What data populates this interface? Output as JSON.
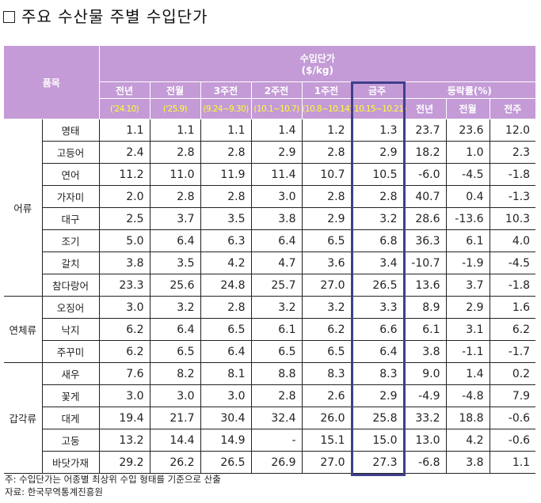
{
  "title": "주요 수산물 주별 수입단가",
  "title_marker": "□",
  "header": {
    "item_label": "품목",
    "price_group": "수입단가",
    "price_unit": "($/kg)",
    "columns": [
      {
        "label": "전년",
        "period": "('24.10)"
      },
      {
        "label": "전월",
        "period": "('25.9)"
      },
      {
        "label": "3주전",
        "period": "(9.24~9.30)"
      },
      {
        "label": "2주전",
        "period": "(10.1~10.7)"
      },
      {
        "label": "1주전",
        "period": "(10.8~10.14)"
      },
      {
        "label": "금주",
        "period": "(10.15~10.21)"
      }
    ],
    "change_group": "등락률(%)",
    "change_columns": [
      "전년",
      "전월",
      "전주"
    ]
  },
  "groups": [
    {
      "category": "어류",
      "rows": [
        {
          "item": "명태",
          "values": [
            "1.1",
            "1.1",
            "1.1",
            "1.4",
            "1.2",
            "1.3"
          ],
          "changes": [
            "23.7",
            "23.6",
            "12.0"
          ]
        },
        {
          "item": "고등어",
          "values": [
            "2.4",
            "2.8",
            "2.8",
            "2.9",
            "2.8",
            "2.9"
          ],
          "changes": [
            "18.2",
            "1.0",
            "2.3"
          ]
        },
        {
          "item": "연어",
          "values": [
            "11.2",
            "11.0",
            "11.9",
            "11.4",
            "10.7",
            "10.5"
          ],
          "changes": [
            "-6.0",
            "-4.5",
            "-1.8"
          ]
        },
        {
          "item": "가자미",
          "values": [
            "2.0",
            "2.8",
            "2.8",
            "3.0",
            "2.8",
            "2.8"
          ],
          "changes": [
            "40.7",
            "0.4",
            "-1.3"
          ]
        },
        {
          "item": "대구",
          "values": [
            "2.5",
            "3.7",
            "3.5",
            "3.8",
            "2.9",
            "3.2"
          ],
          "changes": [
            "28.6",
            "-13.6",
            "10.3"
          ]
        },
        {
          "item": "조기",
          "values": [
            "5.0",
            "6.4",
            "6.3",
            "6.4",
            "6.5",
            "6.8"
          ],
          "changes": [
            "36.3",
            "6.1",
            "4.0"
          ]
        },
        {
          "item": "갈치",
          "values": [
            "3.8",
            "3.5",
            "4.2",
            "4.7",
            "3.6",
            "3.4"
          ],
          "changes": [
            "-10.7",
            "-1.9",
            "-4.5"
          ]
        },
        {
          "item": "참다랑어",
          "values": [
            "23.3",
            "25.6",
            "24.8",
            "25.7",
            "27.0",
            "26.5"
          ],
          "changes": [
            "13.6",
            "3.7",
            "-1.8"
          ]
        }
      ]
    },
    {
      "category": "연체류",
      "rows": [
        {
          "item": "오징어",
          "values": [
            "3.0",
            "3.2",
            "2.8",
            "3.2",
            "3.2",
            "3.3"
          ],
          "changes": [
            "8.9",
            "2.9",
            "1.6"
          ]
        },
        {
          "item": "낙지",
          "values": [
            "6.2",
            "6.4",
            "6.5",
            "6.1",
            "6.2",
            "6.6"
          ],
          "changes": [
            "6.1",
            "3.1",
            "6.2"
          ]
        },
        {
          "item": "주꾸미",
          "values": [
            "6.2",
            "6.5",
            "6.4",
            "6.5",
            "6.5",
            "6.4"
          ],
          "changes": [
            "3.8",
            "-1.1",
            "-1.7"
          ]
        }
      ]
    },
    {
      "category": "갑각류",
      "rows": [
        {
          "item": "새우",
          "values": [
            "7.6",
            "8.2",
            "8.1",
            "8.8",
            "8.3",
            "8.3"
          ],
          "changes": [
            "9.0",
            "1.4",
            "0.2"
          ]
        },
        {
          "item": "꽃게",
          "values": [
            "3.0",
            "3.0",
            "3.0",
            "2.8",
            "2.6",
            "2.9"
          ],
          "changes": [
            "-4.9",
            "-4.8",
            "7.9"
          ]
        },
        {
          "item": "대게",
          "values": [
            "19.4",
            "21.7",
            "30.4",
            "32.4",
            "26.0",
            "25.8"
          ],
          "changes": [
            "33.2",
            "18.8",
            "-0.6"
          ]
        },
        {
          "item": "고둥",
          "values": [
            "13.2",
            "14.4",
            "14.9",
            "-",
            "15.1",
            "15.0"
          ],
          "changes": [
            "13.0",
            "4.2",
            "-0.6"
          ]
        },
        {
          "item": "바닷가재",
          "values": [
            "29.2",
            "26.2",
            "26.5",
            "26.9",
            "27.0",
            "27.3"
          ],
          "changes": [
            "-6.8",
            "3.8",
            "1.1"
          ]
        }
      ]
    }
  ],
  "notes": {
    "footnote": "주: 수입단가는 어종별 최상위 수입 형태를 기준으로 산출",
    "source": "자료: 한국무역통계진흥원"
  },
  "colors": {
    "header_bg": "#c49bd6",
    "header_text": "#ffffff",
    "period_text": "#ffff33",
    "highlight_border": "#3f3f8a"
  }
}
